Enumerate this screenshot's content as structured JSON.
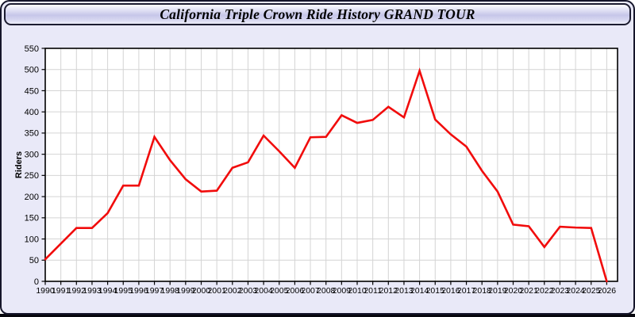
{
  "header": {
    "title": "California Triple Crown Ride History GRAND TOUR"
  },
  "chart_data": {
    "type": "line",
    "title": "California Triple Crown Ride History GRAND TOUR",
    "xlabel": "",
    "ylabel": "Riders",
    "x": [
      "1990",
      "1991",
      "1992",
      "1993",
      "1994",
      "1995",
      "1996",
      "1997",
      "1998",
      "1999",
      "2000",
      "2001",
      "2002",
      "2003",
      "2004",
      "2005",
      "2006",
      "2007",
      "2008",
      "2009",
      "2010",
      "2011",
      "2012",
      "2013",
      "2014",
      "2015",
      "2016",
      "2017",
      "2018",
      "2019",
      "2020",
      "2021",
      "2022",
      "2023",
      "2024",
      "2025",
      "2026"
    ],
    "series": [
      {
        "name": "Riders",
        "values": [
          52,
          89,
          126,
          126,
          161,
          226,
          226,
          341,
          286,
          241,
          212,
          214,
          268,
          281,
          344,
          307,
          268,
          340,
          341,
          392,
          374,
          381,
          412,
          387,
          497,
          382,
          347,
          318,
          261,
          212,
          134,
          130,
          81,
          129,
          127,
          126,
          0
        ]
      }
    ],
    "ylim": [
      0,
      550
    ],
    "ytick_step": 50,
    "grid": true,
    "legend": false
  },
  "colors": {
    "window_background": "#e9e9f8",
    "plot_background": "#ffffff",
    "gridline": "#d4d4d4",
    "axis": "#000000",
    "line": "#f10c0c"
  }
}
